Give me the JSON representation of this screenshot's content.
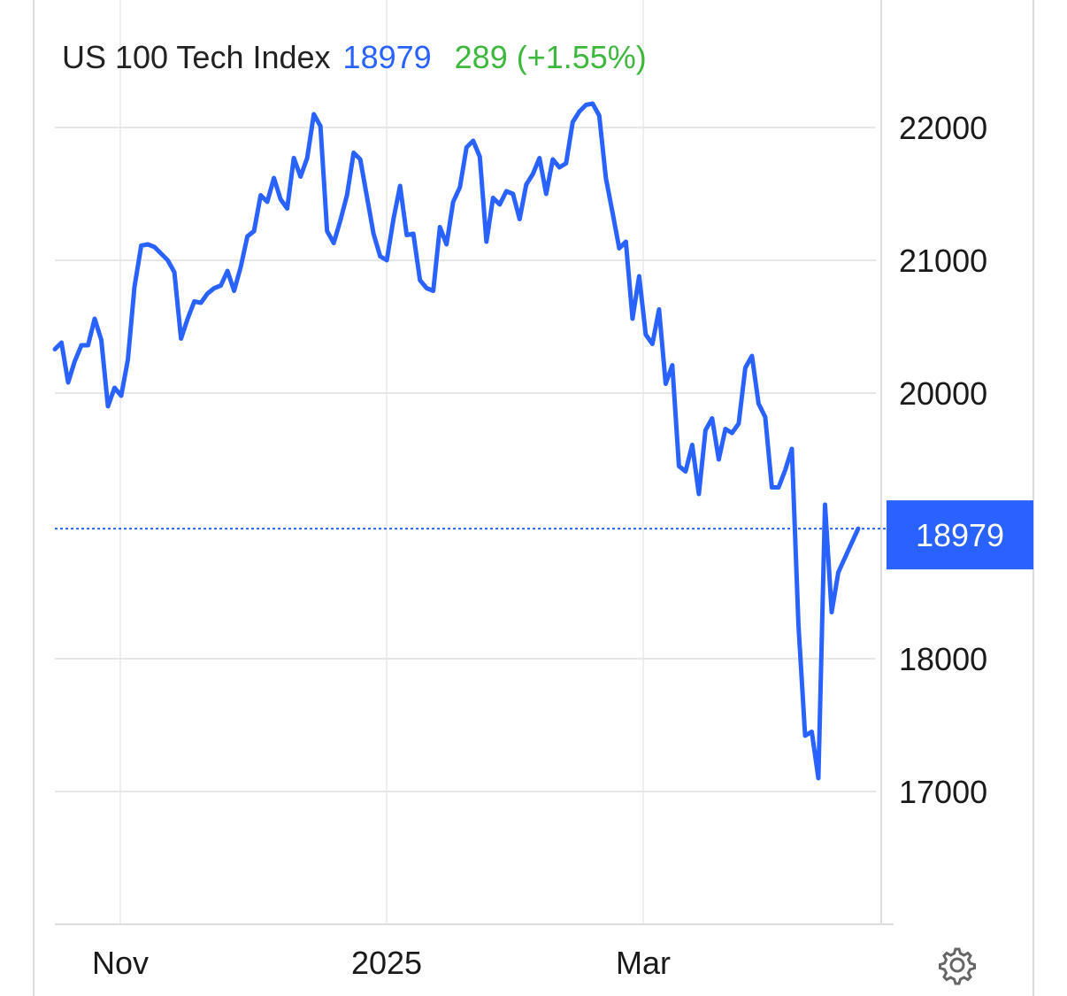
{
  "header": {
    "name": "US 100 Tech Index",
    "price": "18979",
    "change": "289 (+1.55%)"
  },
  "colors": {
    "line": "#2962ff",
    "positive": "#3cb93c",
    "grid": "#e6e6e6",
    "badge": "#2962ff"
  },
  "current_badge": "18979",
  "chart_data": {
    "type": "line",
    "title": "US 100 Tech Index",
    "ylim": [
      16000,
      22600
    ],
    "yticks": [
      22000,
      21000,
      20000,
      18000,
      17000
    ],
    "xlabels": [
      {
        "label": "Nov",
        "x": 10
      },
      {
        "label": "2025",
        "x": 50
      },
      {
        "label": "Mar",
        "x": 89
      }
    ],
    "xlim": [
      0,
      115
    ],
    "current_value": 18979,
    "grid": true,
    "series": [
      {
        "values": [
          20330,
          20380,
          20080,
          20240,
          20360,
          20360,
          20560,
          20400,
          19900,
          20040,
          19980,
          20250,
          20800,
          21110,
          21120,
          21100,
          21050,
          21000,
          20910,
          20410,
          20560,
          20690,
          20680,
          20750,
          20790,
          20810,
          20920,
          20770,
          20950,
          21180,
          21220,
          21490,
          21440,
          21620,
          21460,
          21390,
          21770,
          21630,
          21770,
          22100,
          22010,
          21220,
          21130,
          21300,
          21490,
          21810,
          21760,
          21480,
          21200,
          21030,
          21000,
          21310,
          21560,
          21190,
          21200,
          20850,
          20790,
          20770,
          21250,
          21120,
          21440,
          21550,
          21850,
          21900,
          21780,
          21140,
          21470,
          21420,
          21520,
          21500,
          21310,
          21570,
          21650,
          21770,
          21500,
          21760,
          21700,
          21730,
          22040,
          22120,
          22170,
          22180,
          22090,
          21620,
          21360,
          21090,
          21140,
          20560,
          20880,
          20440,
          20370,
          20630,
          20070,
          20210,
          19450,
          19410,
          19610,
          19240,
          19720,
          19810,
          19500,
          19730,
          19700,
          19770,
          20190,
          20280,
          19920,
          19820,
          19290,
          19290,
          19420,
          19580,
          18250,
          17420,
          17450,
          17100,
          19160,
          18350,
          18650,
          18760,
          18870,
          18979
        ]
      }
    ]
  }
}
